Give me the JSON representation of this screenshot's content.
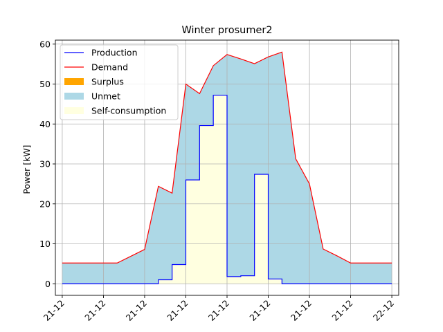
{
  "chart_data": {
    "type": "area",
    "title": "Winter prosumer2",
    "xlabel": "",
    "ylabel": "Power [kW]",
    "xlim": [
      -0.5,
      24.5
    ],
    "ylim": [
      -2.9,
      61
    ],
    "y_ticks": [
      0,
      10,
      20,
      30,
      40,
      50,
      60
    ],
    "x_ticks": [
      0,
      3,
      6,
      9,
      12,
      15,
      18,
      21,
      24
    ],
    "x_tick_labels": [
      "21-12",
      "21-12",
      "21-12",
      "21-12",
      "21-12",
      "21-12",
      "21-12",
      "21-12",
      "22-12"
    ],
    "grid": true,
    "legend_position": "top-left",
    "colors": {
      "production": "#0000ff",
      "demand": "#ff0000",
      "surplus": "#ffa500",
      "unmet": "#add8e6",
      "self_consumption": "#ffffe0"
    },
    "series": [
      {
        "name": "Production",
        "style": "step-post",
        "x": [
          0,
          1,
          2,
          3,
          4,
          5,
          6,
          7,
          8,
          9,
          10,
          11,
          12,
          13,
          14,
          15,
          16,
          17,
          18,
          19,
          20,
          21,
          22,
          23,
          24
        ],
        "values": [
          0,
          0,
          0,
          0,
          0,
          0,
          0,
          1.0,
          4.8,
          26.0,
          39.6,
          47.2,
          1.8,
          2.0,
          27.4,
          1.2,
          0,
          0,
          0,
          0,
          0,
          0,
          0,
          0,
          0
        ]
      },
      {
        "name": "Demand",
        "style": "line",
        "x": [
          0,
          1,
          2,
          3,
          4,
          5,
          6,
          7,
          8,
          9,
          10,
          11,
          12,
          13,
          14,
          15,
          16,
          17,
          18,
          19,
          20,
          21,
          22,
          23,
          24
        ],
        "values": [
          5.2,
          5.2,
          5.2,
          5.2,
          5.2,
          6.9,
          8.6,
          24.4,
          22.7,
          50.0,
          47.6,
          54.6,
          57.4,
          56.3,
          55.1,
          56.8,
          58.0,
          31.3,
          25.0,
          8.7,
          7.0,
          5.2,
          5.2,
          5.2,
          5.2
        ]
      },
      {
        "name": "Surplus"
      },
      {
        "name": "Unmet"
      },
      {
        "name": "Self-consumption"
      }
    ]
  }
}
